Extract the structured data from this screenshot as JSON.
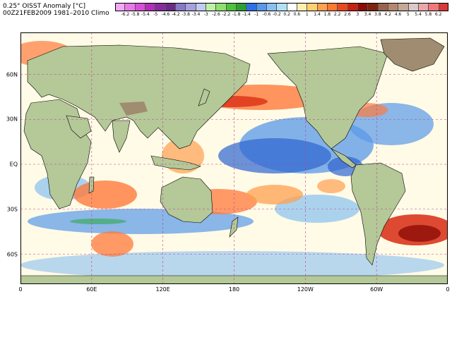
{
  "header": {
    "title_line1": "0.25° OISST Anomaly [°C]",
    "title_line2": "00Z21FEB2009  1981–2010 Climo"
  },
  "colorbar": {
    "labels": [
      "-6.2",
      "-5.8",
      "-5.4",
      "-5",
      "-4.6",
      "-4.2",
      "-3.8",
      "-3.4",
      "-3",
      "-2.6",
      "-2.2",
      "-1.8",
      "-1.4",
      "-1",
      "-0.6",
      "-0.2",
      "0.2",
      "0.6",
      "1",
      "1.4",
      "1.8",
      "2.2",
      "2.6",
      "3",
      "3.4",
      "3.8",
      "4.2",
      "4.6",
      "5",
      "5.4",
      "5.8",
      "6.2"
    ],
    "colors": [
      "#f4a8f4",
      "#e878e8",
      "#d850d8",
      "#b030b8",
      "#882c9c",
      "#6a2a88",
      "#8878c8",
      "#a8a0dc",
      "#c0ccf0",
      "#c0f0a8",
      "#90e070",
      "#50c040",
      "#2ca030",
      "#3070e0",
      "#5898e8",
      "#88c0f0",
      "#b0e0f8",
      "#ffffff",
      "#fff0b0",
      "#ffd070",
      "#ffa050",
      "#ff7830",
      "#e84820",
      "#c82010",
      "#8c0c08",
      "#7c2410",
      "#986450",
      "#b48870",
      "#c4a898",
      "#dcc8c8",
      "#e8a8a8",
      "#f07878",
      "#d83838"
    ]
  },
  "map": {
    "lon_labels": [
      "0",
      "60E",
      "120E",
      "180",
      "120W",
      "60W",
      "0"
    ],
    "lat_labels": [
      "60N",
      "30N",
      "EQ",
      "30S",
      "60S"
    ],
    "colors": {
      "land": "#b4c898",
      "land_high": "#a08c70",
      "ice": "#e8eef4",
      "ocean_base": "#fffbe6",
      "warm": "#ff7a3c",
      "warm_strong": "#d82a10",
      "warm_extreme": "#8c0c08",
      "cool": "#5898e8",
      "cool_strong": "#2c64d0",
      "green": "#30a848",
      "grid": "#c04090"
    }
  }
}
